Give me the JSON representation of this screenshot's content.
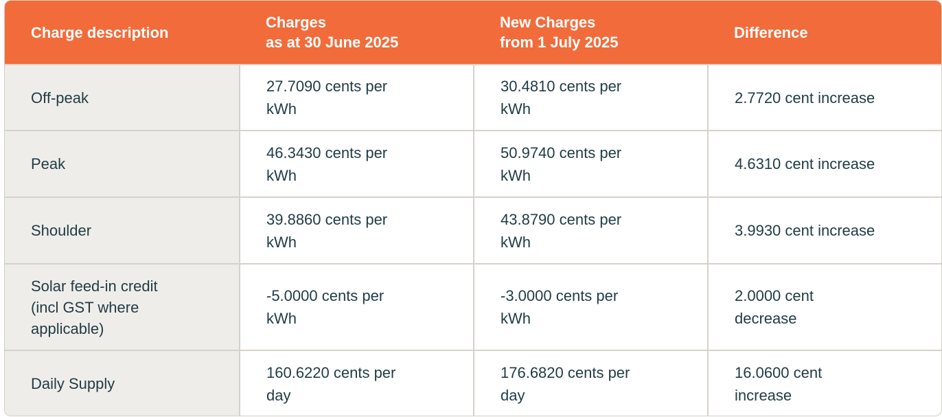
{
  "table": {
    "headers": [
      {
        "lines": [
          "Charge description"
        ]
      },
      {
        "lines": [
          "Charges",
          "as at 30 June 2025"
        ]
      },
      {
        "lines": [
          "New Charges",
          "from 1 July 2025"
        ]
      },
      {
        "lines": [
          "Difference"
        ]
      }
    ],
    "rows": [
      {
        "description": [
          "Off-peak"
        ],
        "current": [
          "27.7090 cents per",
          "kWh"
        ],
        "new": [
          "30.4810 cents per",
          "kWh"
        ],
        "difference": [
          "2.7720 cent increase"
        ]
      },
      {
        "description": [
          "Peak"
        ],
        "current": [
          "46.3430 cents per",
          "kWh"
        ],
        "new": [
          "50.9740 cents per",
          "kWh"
        ],
        "difference": [
          "4.6310 cent increase"
        ]
      },
      {
        "description": [
          "Shoulder"
        ],
        "current": [
          "39.8860 cents per",
          "kWh"
        ],
        "new": [
          "43.8790 cents per",
          "kWh"
        ],
        "difference": [
          "3.9930 cent increase"
        ]
      },
      {
        "description": [
          "Solar feed-in credit",
          "(incl GST where",
          "applicable)"
        ],
        "current": [
          "-5.0000 cents per",
          "kWh"
        ],
        "new": [
          "-3.0000 cents per",
          "kWh"
        ],
        "difference": [
          "2.0000 cent",
          "decrease"
        ]
      },
      {
        "description": [
          "Daily Supply"
        ],
        "current": [
          "160.6220 cents per",
          "day"
        ],
        "new": [
          "176.6820 cents per",
          "day"
        ],
        "difference": [
          "16.0600 cent",
          "increase"
        ]
      }
    ]
  },
  "colors": {
    "header_bg": "#f26b3a",
    "header_text": "#ffffff",
    "first_col_bg": "#efedea",
    "body_text": "#1f3b44",
    "border": "#d6d2ca"
  }
}
